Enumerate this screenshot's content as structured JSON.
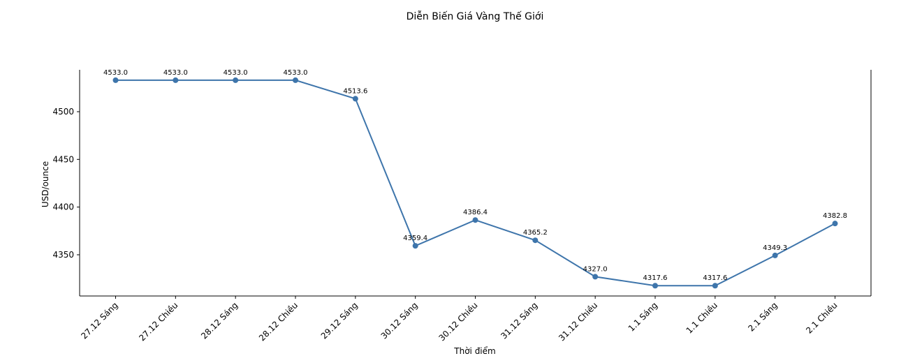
{
  "chart_data": {
    "type": "line",
    "title": "Diễn Biến Giá Vàng Thế Giới",
    "x_label": "Thời điểm",
    "y_label": "USD/ounce",
    "categories": [
      "27.12 Sáng",
      "27.12 Chiều",
      "28.12 Sáng",
      "28.12 Chiều",
      "29.12 Sáng",
      "30.12 Sáng",
      "30.12 Chiều",
      "31.12 Sáng",
      "31.12 Chiều",
      "1.1 Sáng",
      "1.1 Chiều",
      "2.1 Sáng",
      "2.1 Chiều"
    ],
    "values": [
      4533,
      4533,
      4533,
      4533,
      4513.6,
      4359.4,
      4386.4,
      4365.2,
      4327,
      4317.6,
      4317.6,
      4349.3,
      4382.8
    ],
    "value_labels": [
      "4533.0",
      "4533.0",
      "4533.0",
      "4533.0",
      "4513.6",
      "4359.4",
      "4386.4",
      "4365.2",
      "4327.0",
      "4317.6",
      "4317.6",
      "4349.3",
      "4382.8"
    ],
    "color": "#3e75ab",
    "ylim": [
      4306.8,
      4543.9
    ],
    "yticks": [
      4350,
      4400,
      4450,
      4500
    ]
  }
}
